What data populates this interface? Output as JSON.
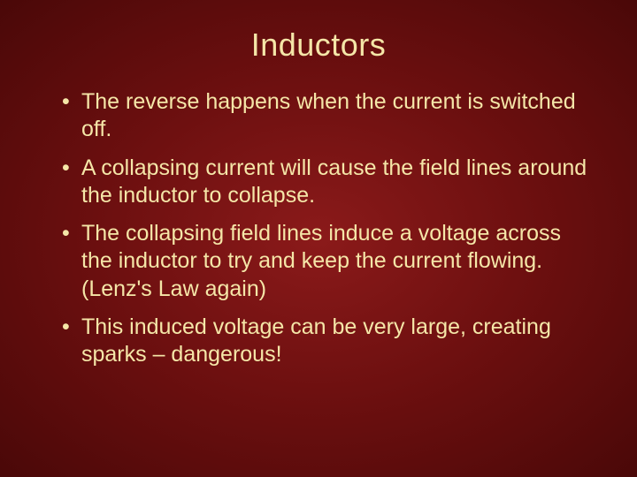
{
  "slide": {
    "title": "Inductors",
    "bullets": [
      "The reverse happens when the current is switched off.",
      "A collapsing current will cause the field lines around the inductor to collapse.",
      "The collapsing field lines induce a voltage across the inductor to try and keep the current flowing. (Lenz's Law again)",
      "This induced voltage can be very large, creating sparks – dangerous!"
    ],
    "colors": {
      "title_color": "#f5e6a8",
      "body_color": "#f5e6a8",
      "background_center": "#8b1a1a",
      "background_edge": "#4a0808"
    },
    "typography": {
      "title_fontsize": 36,
      "body_fontsize": 25,
      "font_family": "Arial"
    }
  }
}
